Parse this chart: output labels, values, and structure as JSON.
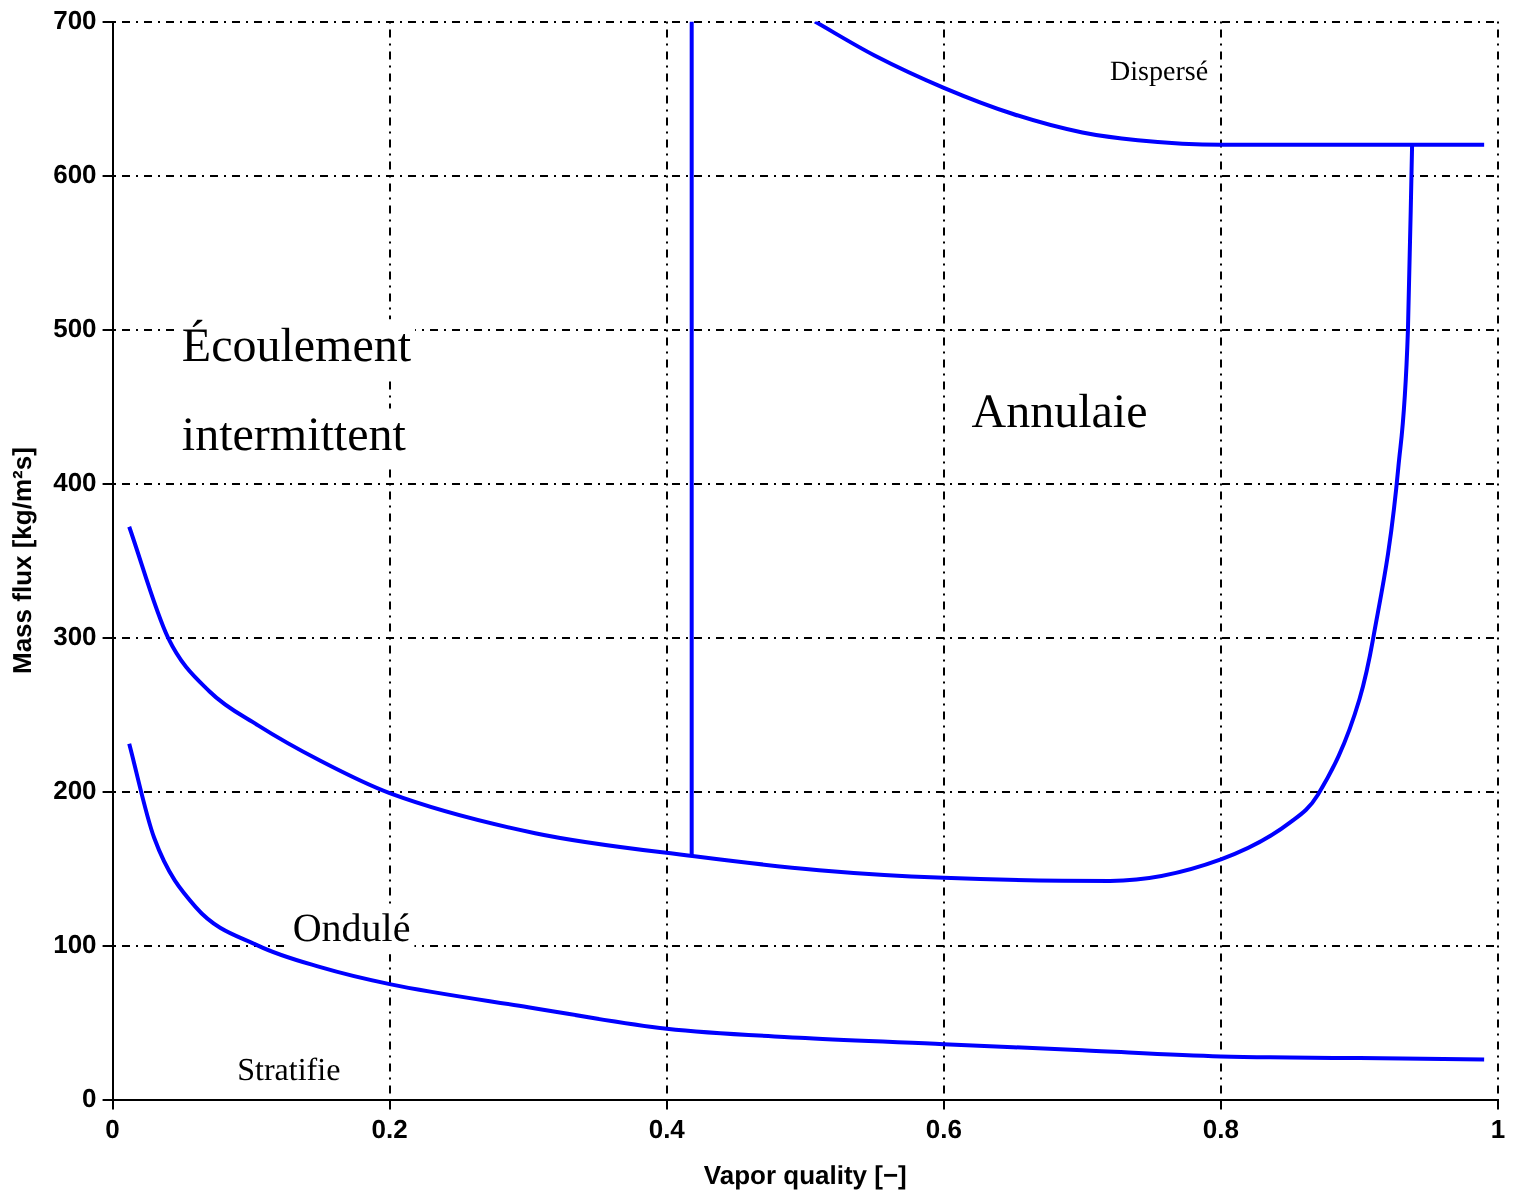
{
  "chart_data": {
    "type": "line",
    "xlabel": "Vapor quality [−]",
    "ylabel": "Mass flux [kg/m²s]",
    "xlim": [
      0,
      1
    ],
    "ylim": [
      0,
      700
    ],
    "xticks": [
      0,
      0.2,
      0.4,
      0.6,
      0.8,
      1
    ],
    "yticks": [
      0,
      100,
      200,
      300,
      400,
      500,
      600,
      700
    ],
    "grid": true,
    "legend": false,
    "marker": "none",
    "line_style": "solid",
    "series": [
      {
        "color": "#0000ff",
        "x": [
          0.012,
          0.03,
          0.06,
          0.105,
          0.15,
          0.2,
          0.3,
          0.4,
          0.5,
          0.6,
          0.7,
          0.8,
          0.9,
          0.99
        ],
        "values": [
          231,
          170,
          125,
          100,
          86,
          75,
          60,
          46,
          40,
          36,
          32,
          28,
          27,
          26
        ]
      },
      {
        "color": "#0000ff",
        "x": [
          0.012,
          0.04,
          0.07,
          0.105,
          0.15,
          0.2,
          0.305,
          0.42,
          0.51,
          0.6,
          0.72,
          0.8,
          0.85,
          0.87,
          0.9,
          0.91,
          0.928,
          0.935,
          0.938
        ],
        "values": [
          372,
          300,
          265,
          243,
          220,
          199,
          173,
          158,
          149,
          144,
          142,
          156,
          180,
          198,
          260,
          300,
          410,
          500,
          620
        ]
      },
      {
        "color": "#0000ff",
        "x": [
          0.418,
          0.418
        ],
        "values": [
          158,
          700
        ]
      },
      {
        "color": "#0000ff",
        "x": [
          0.507,
          0.55,
          0.6,
          0.65,
          0.7,
          0.74,
          0.8,
          0.9,
          0.99
        ],
        "values": [
          700,
          678,
          657,
          640,
          628,
          623,
          620,
          620,
          620
        ]
      }
    ],
    "annotations": [
      "Écoulement",
      "intermittent",
      "Annulaie",
      "Ondulé",
      "Stratifie",
      "Dispersé"
    ]
  }
}
